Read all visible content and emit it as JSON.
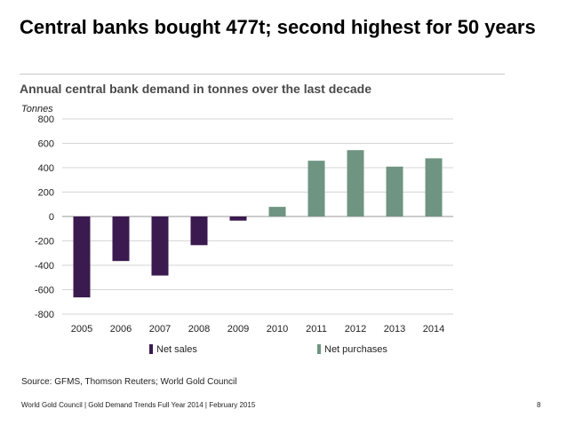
{
  "slide": {
    "title": "Central banks bought 477t; second highest for 50 years"
  },
  "chart_data": {
    "type": "bar",
    "title": "Annual central bank demand in tonnes over the last decade",
    "ylabel": "Tonnes",
    "xlabel": "",
    "categories": [
      "2005",
      "2006",
      "2007",
      "2008",
      "2009",
      "2010",
      "2011",
      "2012",
      "2013",
      "2014"
    ],
    "values": [
      -663,
      -365,
      -484,
      -235,
      -34,
      79,
      457,
      544,
      409,
      477
    ],
    "ylim": [
      -800,
      800
    ],
    "yticks": [
      800,
      600,
      400,
      200,
      0,
      -200,
      -400,
      -600,
      -800
    ],
    "grid": true,
    "legend_position": "bottom",
    "series": [
      {
        "name": "Net sales",
        "color": "#3b1a4f"
      },
      {
        "name": "Net purchases",
        "color": "#6f9482"
      }
    ]
  },
  "source": "Source: GFMS, Thomson Reuters; World Gold Council",
  "footer": {
    "text": "World Gold Council  |  Gold Demand Trends Full Year 2014  |  February 2015",
    "page": "8"
  }
}
